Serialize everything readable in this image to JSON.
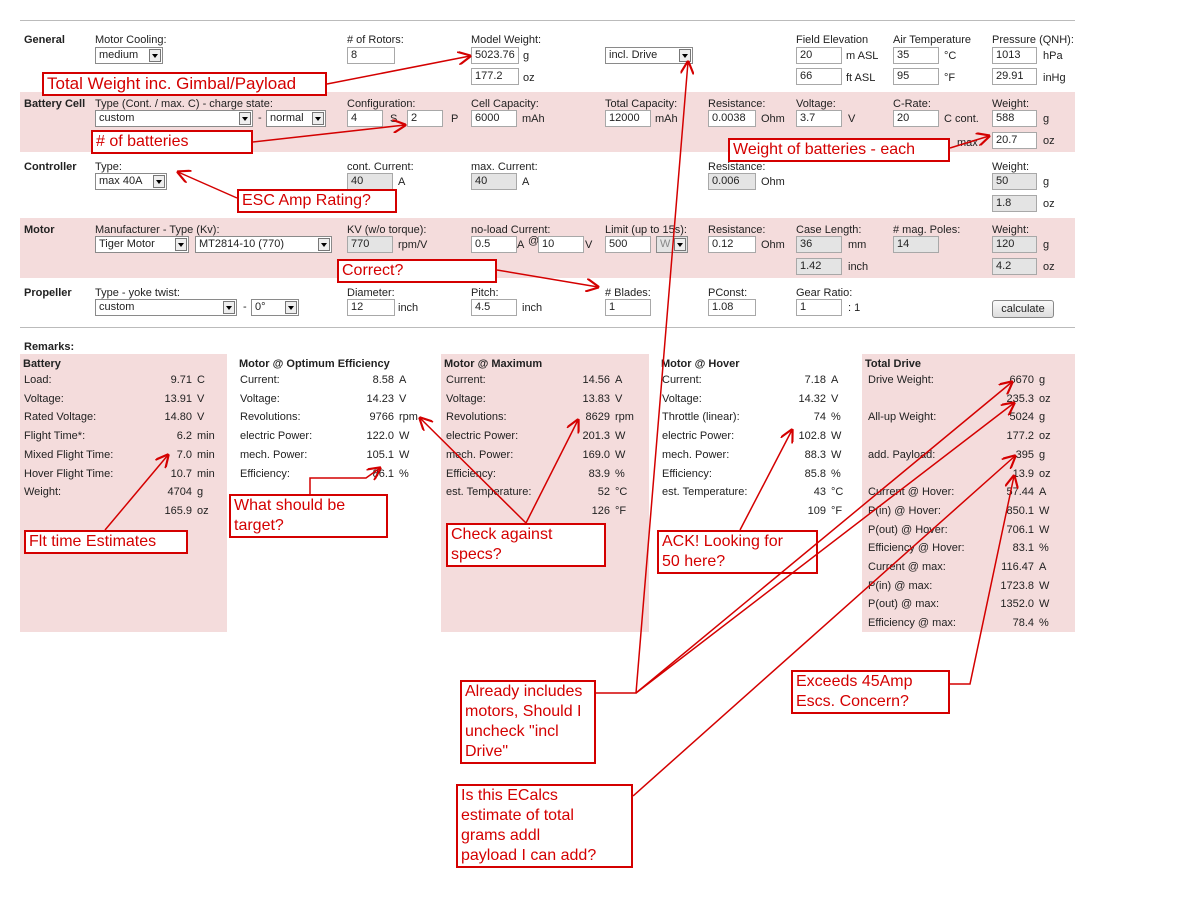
{
  "form": {
    "general": {
      "title": "General",
      "cooling_label": "Motor Cooling:",
      "cooling": "medium",
      "rotors_label": "# of Rotors:",
      "rotors": "8",
      "weight_label": "Model Weight:",
      "weight_g": "5023.76",
      "weight_oz": "177.2",
      "drive": "incl. Drive",
      "elevation_label": "Field Elevation",
      "elevation_m": "20",
      "elevation_ft": "66",
      "temp_label": "Air Temperature",
      "temp_c": "35",
      "temp_f": "95",
      "pressure_label": "Pressure (QNH):",
      "pressure_hpa": "1013",
      "pressure_inhg": "29.91",
      "units": {
        "g": "g",
        "oz": "oz",
        "m": "m ASL",
        "ft": "ft ASL",
        "c": "°C",
        "f": "°F",
        "hpa": "hPa",
        "inhg": "inHg"
      }
    },
    "battery": {
      "title": "Battery Cell",
      "type_label": "Type (Cont. / max. C) - charge state:",
      "type": "custom",
      "separator": "-",
      "state": "normal",
      "config_label": "Configuration:",
      "cells_s": "4",
      "cells_p": "2",
      "capacity_label": "Cell Capacity:",
      "capacity": "6000",
      "total_label": "Total Capacity:",
      "total": "12000",
      "resistance_label": "Resistance:",
      "resistance": "0.0038",
      "voltage_label": "Voltage:",
      "voltage": "3.7",
      "crate_label": "C-Rate:",
      "crate": "20",
      "weight_label": "Weight:",
      "weight_g": "588",
      "weight_oz": "20.7",
      "units": {
        "s": "S",
        "p": "P",
        "mah": "mAh",
        "ohm": "Ohm",
        "v": "V",
        "cont": "C cont.",
        "max": "max",
        "g": "g",
        "oz": "oz"
      }
    },
    "controller": {
      "title": "Controller",
      "type_label": "Type:",
      "type": "max 40A",
      "cont_label": "cont. Current:",
      "cont": "40",
      "max_label": "max. Current:",
      "max": "40",
      "resistance_label": "Resistance:",
      "resistance": "0.006",
      "weight_label": "Weight:",
      "weight_g": "50",
      "weight_oz": "1.8",
      "units": {
        "a": "A",
        "ohm": "Ohm",
        "g": "g",
        "oz": "oz"
      }
    },
    "motor": {
      "title": "Motor",
      "type_label": "Manufacturer - Type (Kv):",
      "manufacturer": "Tiger Motor",
      "model": "MT2814-10 (770)",
      "kv_label": "KV (w/o torque):",
      "kv": "770",
      "noload_label": "no-load Current:",
      "noload": "0.5",
      "noload_v": "10",
      "limit_label": "Limit (up to 15s):",
      "limit": "500",
      "limit_unit": "W",
      "resistance_label": "Resistance:",
      "resistance": "0.12",
      "length_label": "Case Length:",
      "length_mm": "36",
      "length_in": "1.42",
      "poles_label": "# mag. Poles:",
      "poles": "14",
      "weight_label": "Weight:",
      "weight_g": "120",
      "weight_oz": "4.2",
      "units": {
        "rpmv": "rpm/V",
        "a": "A",
        "at": "@",
        "v": "V",
        "ohm": "Ohm",
        "mm": "mm",
        "inch": "inch",
        "g": "g",
        "oz": "oz"
      }
    },
    "propeller": {
      "title": "Propeller",
      "type_label": "Type - yoke twist:",
      "type": "custom",
      "separator": "-",
      "twist": "0°",
      "diameter_label": "Diameter:",
      "diameter": "12",
      "pitch_label": "Pitch:",
      "pitch": "4.5",
      "blades_label": "# Blades:",
      "blades": "1",
      "pconst_label": "PConst:",
      "pconst": "1.08",
      "gear_label": "Gear Ratio:",
      "gear": "1",
      "button": "calculate",
      "units": {
        "inch": "inch",
        "ratio": ": 1"
      }
    }
  },
  "results": {
    "title": "Remarks:",
    "panels": [
      {
        "title": "Battery",
        "rows": [
          [
            "Load:",
            "9.71",
            "C"
          ],
          [
            "Voltage:",
            "13.91",
            "V"
          ],
          [
            "Rated Voltage:",
            "14.80",
            "V"
          ],
          [
            "Flight Time*:",
            "6.2",
            "min"
          ],
          [
            "Mixed Flight Time:",
            "7.0",
            "min"
          ],
          [
            "Hover Flight Time:",
            "10.7",
            "min"
          ],
          [
            "Weight:",
            "4704",
            "g"
          ],
          [
            null,
            "165.9",
            "oz"
          ]
        ]
      },
      {
        "title": "Motor @ Optimum Efficiency",
        "rows": [
          [
            "Current:",
            "8.58",
            "A"
          ],
          [
            "Voltage:",
            "14.23",
            "V"
          ],
          [
            "Revolutions:",
            "9766",
            "rpm"
          ],
          [
            "electric Power:",
            "122.0",
            "W"
          ],
          [
            "mech. Power:",
            "105.1",
            "W"
          ],
          [
            "Efficiency:",
            "86.1",
            "%"
          ]
        ]
      },
      {
        "title": "Motor @ Maximum",
        "rows": [
          [
            "Current:",
            "14.56",
            "A"
          ],
          [
            "Voltage:",
            "13.83",
            "V"
          ],
          [
            "Revolutions:",
            "8629",
            "rpm"
          ],
          [
            "electric Power:",
            "201.3",
            "W"
          ],
          [
            "mech. Power:",
            "169.0",
            "W"
          ],
          [
            "Efficiency:",
            "83.9",
            "%"
          ],
          [
            "est. Temperature:",
            "52",
            "°C"
          ],
          [
            null,
            "126",
            "°F"
          ]
        ]
      },
      {
        "title": "Motor @ Hover",
        "rows": [
          [
            "Current:",
            "7.18",
            "A"
          ],
          [
            "Voltage:",
            "14.32",
            "V"
          ],
          [
            "Throttle (linear):",
            "74",
            "%"
          ],
          [
            "electric Power:",
            "102.8",
            "W"
          ],
          [
            "mech. Power:",
            "88.3",
            "W"
          ],
          [
            "Efficiency:",
            "85.8",
            "%"
          ],
          [
            "est. Temperature:",
            "43",
            "°C"
          ],
          [
            null,
            "109",
            "°F"
          ]
        ]
      },
      {
        "title": "Total Drive",
        "rows": [
          [
            "Drive Weight:",
            "6670",
            "g"
          ],
          [
            null,
            "235.3",
            "oz"
          ],
          [
            "All-up Weight:",
            "5024",
            "g"
          ],
          [
            null,
            "177.2",
            "oz"
          ],
          [
            "add. Payload:",
            "395",
            "g"
          ],
          [
            null,
            "13.9",
            "oz"
          ],
          [
            "Current @ Hover:",
            "57.44",
            "A"
          ],
          [
            "P(in) @ Hover:",
            "850.1",
            "W"
          ],
          [
            "P(out) @ Hover:",
            "706.1",
            "W"
          ],
          [
            "Efficiency @ Hover:",
            "83.1",
            "%"
          ],
          [
            "Current @ max:",
            "116.47",
            "A"
          ],
          [
            "P(in) @ max:",
            "1723.8",
            "W"
          ],
          [
            "P(out) @ max:",
            "1352.0",
            "W"
          ],
          [
            "Efficiency @ max:",
            "78.4",
            "%"
          ]
        ]
      }
    ]
  },
  "annotations": [
    {
      "lines": [
        "Total Weight inc. Gimbal/Payload"
      ]
    },
    {
      "lines": [
        "# of batteries"
      ]
    },
    {
      "lines": [
        "Weight of batteries - each"
      ]
    },
    {
      "lines": [
        "ESC Amp Rating?"
      ]
    },
    {
      "lines": [
        "Correct?"
      ]
    },
    {
      "lines": [
        "Flt time Estimates"
      ]
    },
    {
      "lines": [
        "What should be",
        "target?"
      ]
    },
    {
      "lines": [
        "Check against",
        "specs?"
      ]
    },
    {
      "lines": [
        "ACK! Looking for",
        "50 here?"
      ]
    },
    {
      "lines": [
        "Already includes",
        "motors, Should I",
        "uncheck \"incl",
        "Drive\""
      ]
    },
    {
      "lines": [
        "Is this ECalcs",
        "estimate of total",
        "grams addl",
        "payload I can add?"
      ]
    },
    {
      "lines": [
        "Exceeds 45Amp",
        "Escs. Concern?"
      ]
    }
  ]
}
